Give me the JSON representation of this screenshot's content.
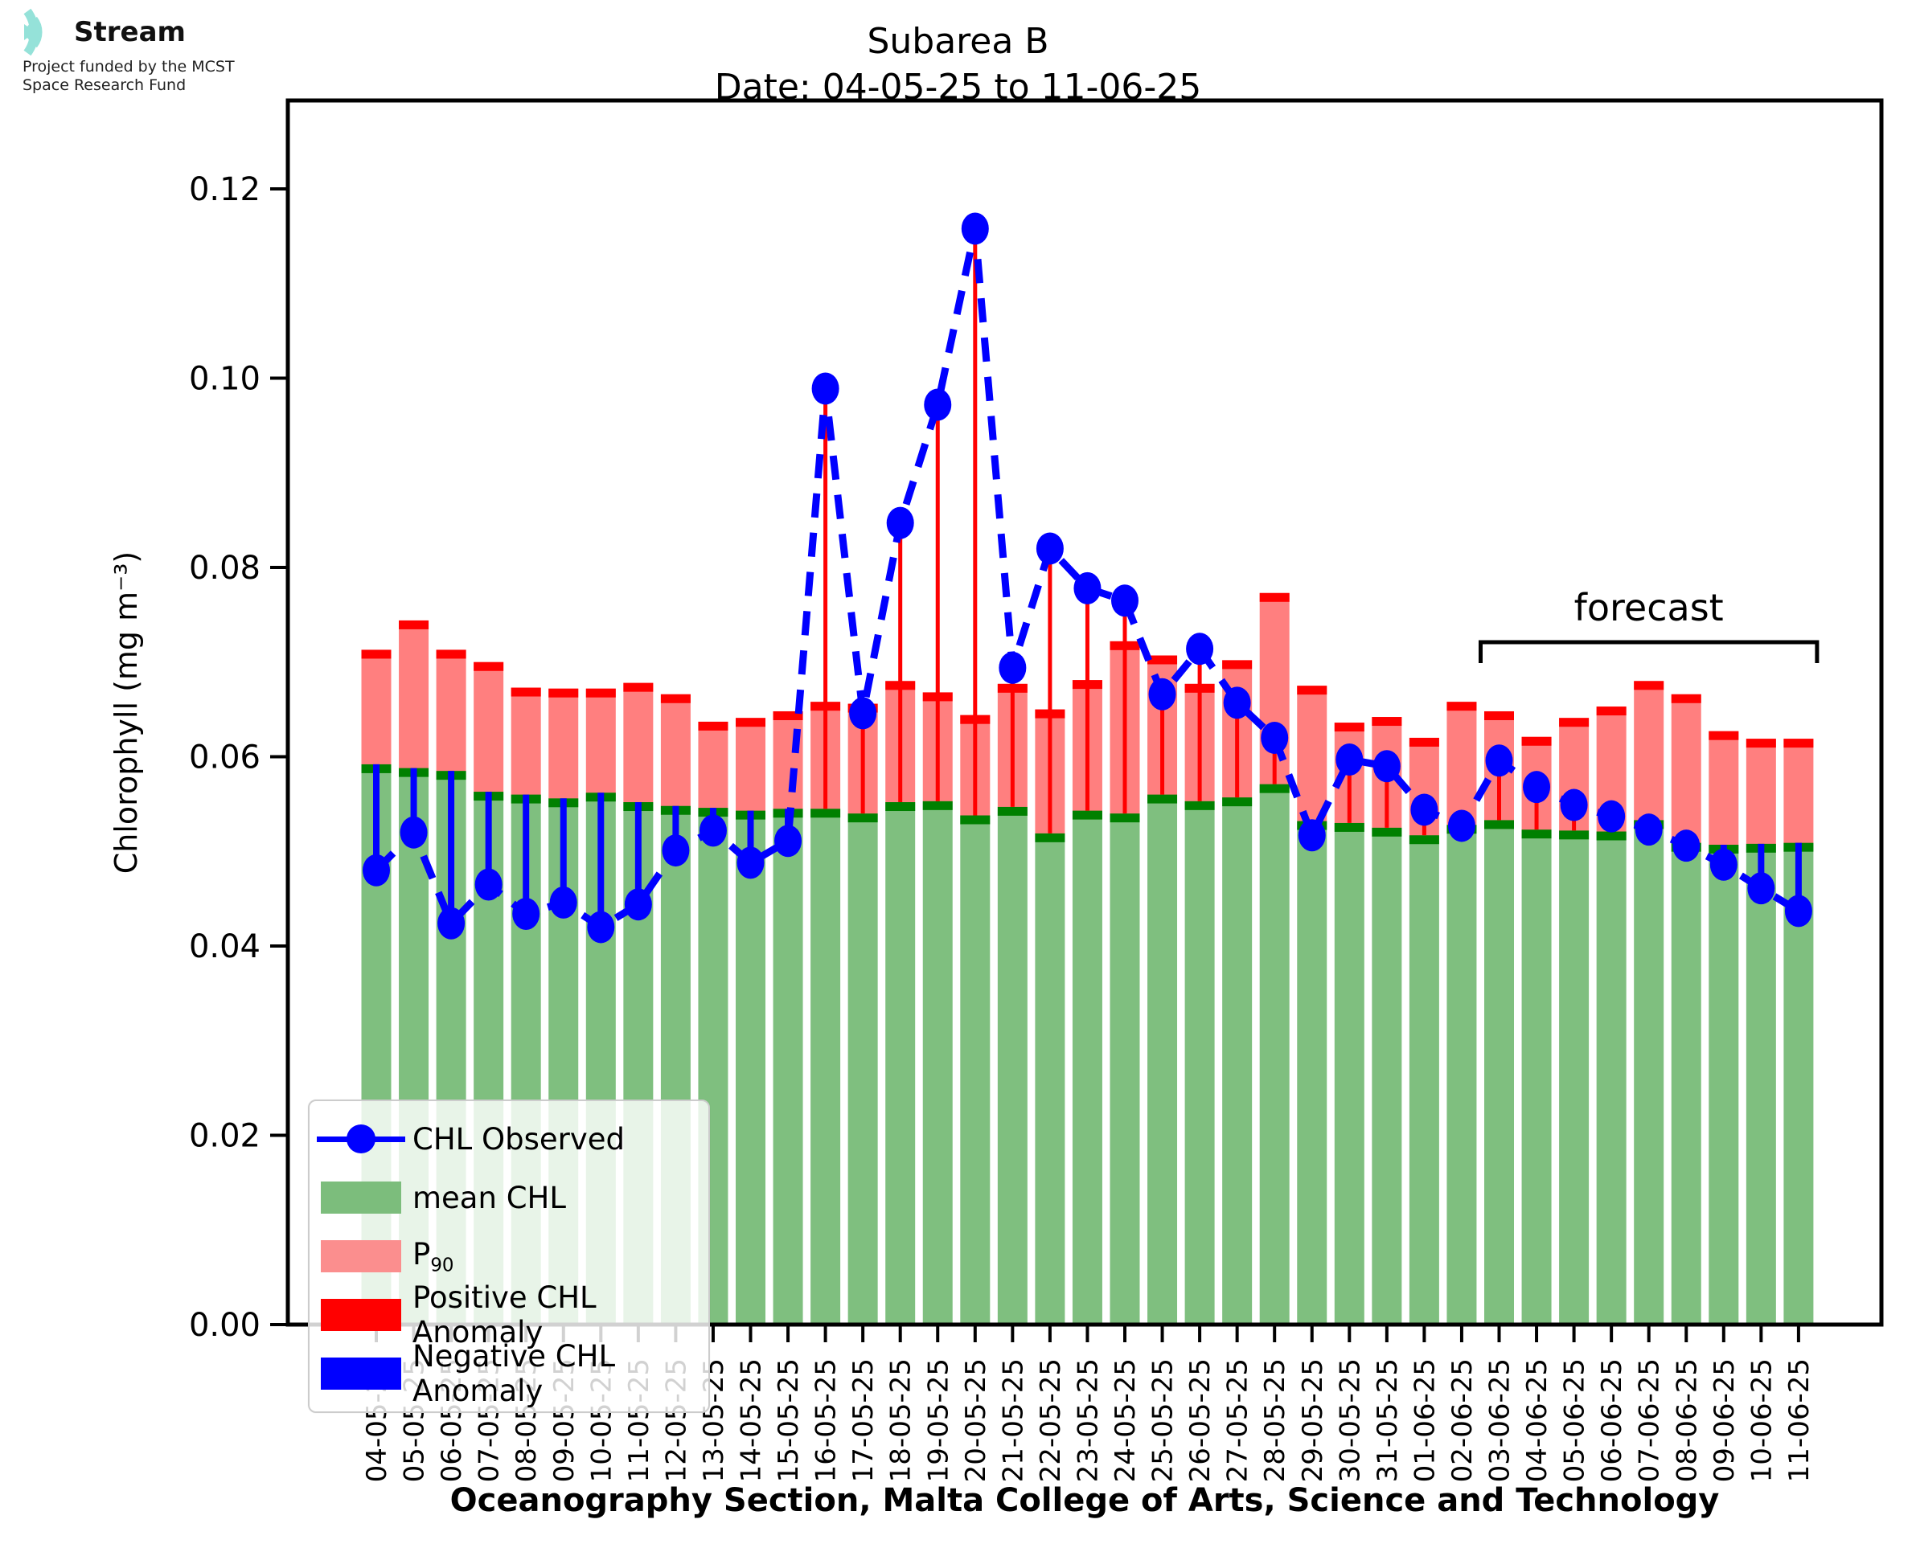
{
  "logo": {
    "brand": "Stream",
    "subtitle_line1": "Project funded by the MCST",
    "subtitle_line2": "Space Research Fund",
    "accent_color": "#95e2d9"
  },
  "header": {
    "title_line1": "Subarea B",
    "title_line2": "Date: 04-05-25 to 11-06-25"
  },
  "legend": {
    "observed_label": "CHL Observed",
    "mean_label": "mean CHL",
    "p90_label_base": "P",
    "p90_label_sub": "90",
    "positive_label": "Positive CHL Anomaly",
    "negative_label": "Negative CHL Anomaly"
  },
  "annotations": {
    "forecast_label": "forecast",
    "forecast_start": "03-06-25",
    "forecast_end": "11-06-25"
  },
  "axes": {
    "ylabel": "Chlorophyll (mg m⁻³)",
    "xlabel": "Oceanography Section, Malta College of Arts, Science and Technology",
    "ytick_labels": [
      "0.00",
      "0.02",
      "0.04",
      "0.06",
      "0.08",
      "0.10",
      "0.12"
    ]
  },
  "colors": {
    "mean_fill": "rgba(0,128,0,0.5)",
    "mean_cap": "#008000",
    "p90_fill": "rgba(255,0,0,0.5)",
    "p90_cap": "#ff0000",
    "positive_anomaly": "#ff0000",
    "negative_anomaly": "#0000ff",
    "observed": "#0000ff",
    "axis": "#000000"
  },
  "chart_data": {
    "type": "bar",
    "title": "Subarea B — Date: 04-05-25 to 11-06-25",
    "xlabel": "Oceanography Section, Malta College of Arts, Science and Technology",
    "ylabel": "Chlorophyll (mg m-3)",
    "ylim": [
      0,
      0.13
    ],
    "yticks": [
      0,
      0.02,
      0.04,
      0.06,
      0.08,
      0.1,
      0.12
    ],
    "grid": false,
    "legend_position": "lower left",
    "categories": [
      "04-05-25",
      "05-05-25",
      "06-05-25",
      "07-05-25",
      "08-05-25",
      "09-05-25",
      "10-05-25",
      "11-05-25",
      "12-05-25",
      "13-05-25",
      "14-05-25",
      "15-05-25",
      "16-05-25",
      "17-05-25",
      "18-05-25",
      "19-05-25",
      "20-05-25",
      "21-05-25",
      "22-05-25",
      "23-05-25",
      "24-05-25",
      "25-05-25",
      "26-05-25",
      "27-05-25",
      "28-05-25",
      "29-05-25",
      "30-05-25",
      "31-05-25",
      "01-06-25",
      "02-06-25",
      "03-06-25",
      "04-06-25",
      "05-06-25",
      "06-06-25",
      "07-06-25",
      "08-06-25",
      "09-06-25",
      "10-06-25",
      "11-06-25"
    ],
    "series": [
      {
        "name": "CHL Observed",
        "style": "dashed line + markers",
        "values": [
          0.048,
          0.052,
          0.0424,
          0.0465,
          0.0434,
          0.0446,
          0.042,
          0.0444,
          0.0501,
          0.0522,
          0.0488,
          0.0511,
          0.0989,
          0.0646,
          0.0847,
          0.0972,
          0.1158,
          0.0694,
          0.082,
          0.0778,
          0.0765,
          0.0666,
          0.0714,
          0.0657,
          0.062,
          0.0517,
          0.0597,
          0.059,
          0.0544,
          0.0527,
          0.0596,
          0.0568,
          0.0549,
          0.0537,
          0.0523,
          0.0506,
          0.0486,
          0.0461,
          0.0437
        ]
      },
      {
        "name": "mean CHL",
        "style": "bar",
        "values": [
          0.0592,
          0.0588,
          0.0585,
          0.0563,
          0.056,
          0.0556,
          0.0562,
          0.0552,
          0.0548,
          0.0546,
          0.0543,
          0.0545,
          0.0545,
          0.054,
          0.0552,
          0.0553,
          0.0538,
          0.0547,
          0.0519,
          0.0543,
          0.054,
          0.056,
          0.0553,
          0.0557,
          0.0571,
          0.0532,
          0.053,
          0.0525,
          0.0517,
          0.0528,
          0.0533,
          0.0523,
          0.0522,
          0.0521,
          0.0533,
          0.0509,
          0.0507,
          0.0508,
          0.0509
        ]
      },
      {
        "name": "P90",
        "style": "bar (mean to P90)",
        "values": [
          0.0713,
          0.0744,
          0.0713,
          0.07,
          0.0673,
          0.0672,
          0.0672,
          0.0678,
          0.0666,
          0.0637,
          0.0641,
          0.0648,
          0.0658,
          0.0656,
          0.068,
          0.0668,
          0.0644,
          0.0677,
          0.065,
          0.0681,
          0.0722,
          0.0707,
          0.0677,
          0.0702,
          0.0773,
          0.0675,
          0.0636,
          0.0642,
          0.062,
          0.0658,
          0.0648,
          0.0621,
          0.0641,
          0.0653,
          0.068,
          0.0666,
          0.0627,
          0.0619,
          0.0619
        ]
      }
    ],
    "anomaly_rule": "red stem where observed > mean CHL, blue stem where observed < mean CHL",
    "forecast_range": [
      "03-06-25",
      "11-06-25"
    ]
  }
}
